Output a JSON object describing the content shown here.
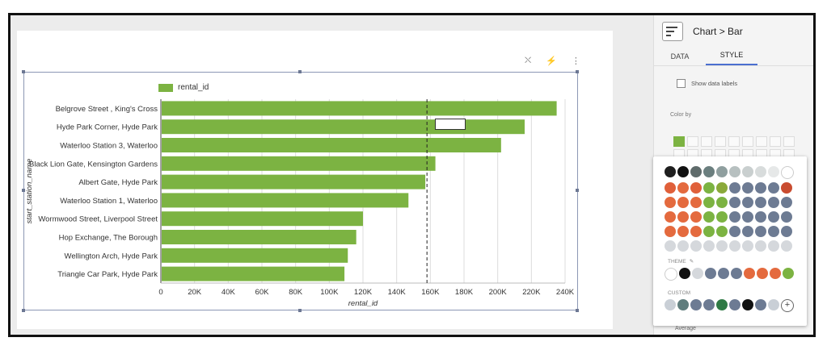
{
  "panel": {
    "breadcrumb": "Chart",
    "separator": ">",
    "chart_kind": "Bar",
    "tabs": [
      "DATA",
      "STYLE"
    ],
    "active_tab": "STYLE",
    "show_data_labels": "Show data labels",
    "color_by": "Color by",
    "theme_label": "THEME",
    "custom_label": "CUSTOM",
    "average_label": "Average"
  },
  "colors": {
    "bar": "#7cb342",
    "palette_rows": [
      [
        "#1f1f1f",
        "#111111",
        "#5f6b6b",
        "#6b7f7f",
        "#8f9f9f",
        "#b7c0c0",
        "#c9cfcf",
        "#d8dcdc",
        "#e6e8e8",
        "#ffffff"
      ],
      [
        "#e0603a",
        "#e46a3e",
        "#e0603a",
        "#7cb342",
        "#8aa93a",
        "#6d7b93",
        "#6d7b93",
        "#6d7b93",
        "#6d7b93",
        "#c94c30"
      ],
      [
        "#e46a3e",
        "#e46a3e",
        "#e46a3e",
        "#7cb342",
        "#7cb342",
        "#6d7b93",
        "#6d7b93",
        "#6d7b93",
        "#6d7b93",
        "#6d7b93"
      ],
      [
        "#e46a3e",
        "#e46a3e",
        "#e46a3e",
        "#7cb342",
        "#7cb342",
        "#6d7b93",
        "#6d7b93",
        "#6d7b93",
        "#6d7b93",
        "#6d7b93"
      ],
      [
        "#e46a3e",
        "#e46a3e",
        "#e46a3e",
        "#7cb342",
        "#7cb342",
        "#6d7b93",
        "#6d7b93",
        "#6d7b93",
        "#6d7b93",
        "#6d7b93"
      ],
      [
        "#d5d8dc",
        "#d5d8dc",
        "#d5d8dc",
        "#d5d8dc",
        "#d5d8dc",
        "#d5d8dc",
        "#d5d8dc",
        "#d5d8dc",
        "#d5d8dc",
        "#d5d8dc"
      ]
    ],
    "theme_row": [
      "#ffffff",
      "#111111",
      "#d5d8dc",
      "#6d7b93",
      "#6d7b93",
      "#6d7b93",
      "#e46a3e",
      "#e46a3e",
      "#e46a3e",
      "#7cb342"
    ],
    "custom_row": [
      "#c9cfd6",
      "#5f7d7d",
      "#6d7b93",
      "#6d7b93",
      "#2f7a45",
      "#6d7b93",
      "#111111",
      "#6d7b93",
      "#c9cfd6"
    ]
  },
  "chart_data": {
    "type": "bar",
    "orientation": "horizontal",
    "legend": [
      "rental_id"
    ],
    "ylabel": "start_station_name",
    "xlabel": "rental_id",
    "categories": [
      "Belgrove Street , King's Cross",
      "Hyde Park Corner, Hyde Park",
      "Waterloo Station 3, Waterloo",
      "Black Lion Gate, Kensington Gardens",
      "Albert Gate, Hyde Park",
      "Waterloo Station 1, Waterloo",
      "Wormwood Street, Liverpool Street",
      "Hop Exchange, The Borough",
      "Wellington Arch, Hyde Park",
      "Triangle Car Park, Hyde Park"
    ],
    "values": [
      235000,
      216000,
      202000,
      163000,
      157000,
      147000,
      120000,
      116000,
      111000,
      109000
    ],
    "xlim": [
      0,
      240000
    ],
    "xticks": [
      "0",
      "20K",
      "40K",
      "60K",
      "80K",
      "100K",
      "120K",
      "140K",
      "160K",
      "180K",
      "200K",
      "220K",
      "240K"
    ],
    "grid": true,
    "reference_line_value": 158000
  }
}
